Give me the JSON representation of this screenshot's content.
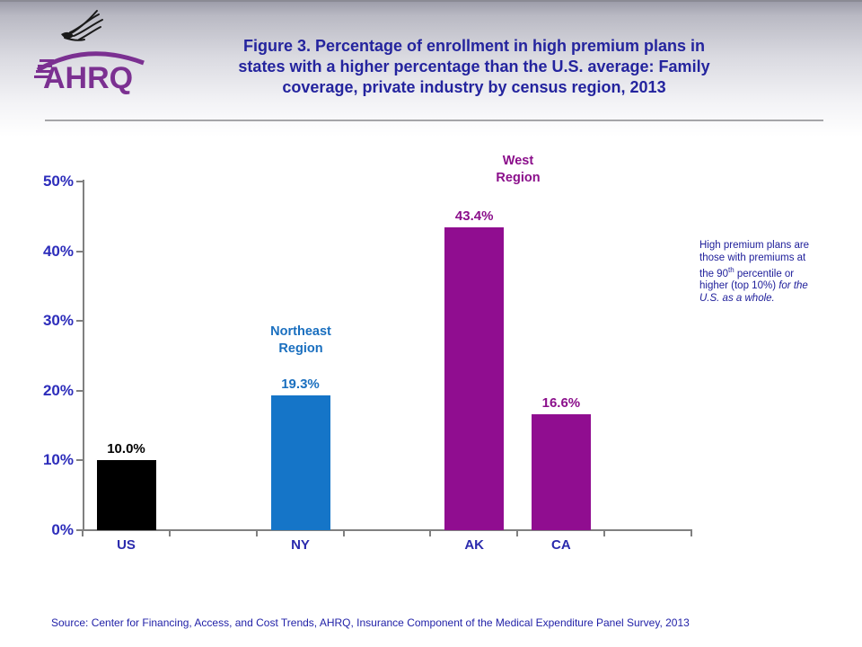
{
  "header": {
    "logo": {
      "wordmark": "AHRQ"
    },
    "title_lines": [
      "Figure 3. Percentage of enrollment in high premium plans in",
      "states with a higher percentage than the U.S. average: Family",
      "coverage, private industry by census region, 2013"
    ]
  },
  "chart_data": {
    "type": "bar",
    "title": "Figure 3. Percentage of enrollment in high premium plans in states with a higher percentage than the U.S. average: Family coverage, private industry by census region, 2013",
    "categories": [
      "US",
      "NY",
      "AK",
      "CA"
    ],
    "values": [
      10.0,
      19.3,
      43.4,
      16.6
    ],
    "value_labels": [
      "10.0%",
      "19.3%",
      "43.4%",
      "16.6%"
    ],
    "bar_colors": [
      "#000000",
      "#1575c8",
      "#900d90",
      "#900d90"
    ],
    "value_label_colors": [
      "#000000",
      "#1a6fbf",
      "#8b0f8b",
      "#8b0f8b"
    ],
    "xlabel": "",
    "ylabel": "",
    "ylim": [
      0,
      50
    ],
    "yticks": [
      {
        "value": 0,
        "label": "0%"
      },
      {
        "value": 10,
        "label": "10%"
      },
      {
        "value": 20,
        "label": "20%"
      },
      {
        "value": 30,
        "label": "30%"
      },
      {
        "value": 40,
        "label": "40%"
      },
      {
        "value": 50,
        "label": "50%"
      }
    ],
    "grid": false,
    "legend": "none",
    "annotations": [
      {
        "text_lines": [
          "Northeast",
          "Region"
        ],
        "color": "#1a6fbf",
        "labels_bars": [
          "NY"
        ]
      },
      {
        "text_lines": [
          "West",
          "Region"
        ],
        "color": "#8b0f8b",
        "labels_bars": [
          "AK",
          "CA"
        ]
      }
    ]
  },
  "note": {
    "part1": "High premium plans are those with premiums at the 90",
    "sup": "th",
    "part2": " percentile or higher (top 10%) ",
    "part3_italic": "for the U.S. as a whole."
  },
  "source": "Source: Center for Financing, Access, and Cost Trends, AHRQ, Insurance Component of the Medical Expenditure Panel Survey, 2013",
  "colors": {
    "title_text": "#24249e",
    "axis_line": "#808080",
    "ytick_text": "#2d2dbb",
    "xtick_text": "#2a2aad",
    "header_top": "#9d9daa",
    "logo_purple": "#7b3091"
  }
}
